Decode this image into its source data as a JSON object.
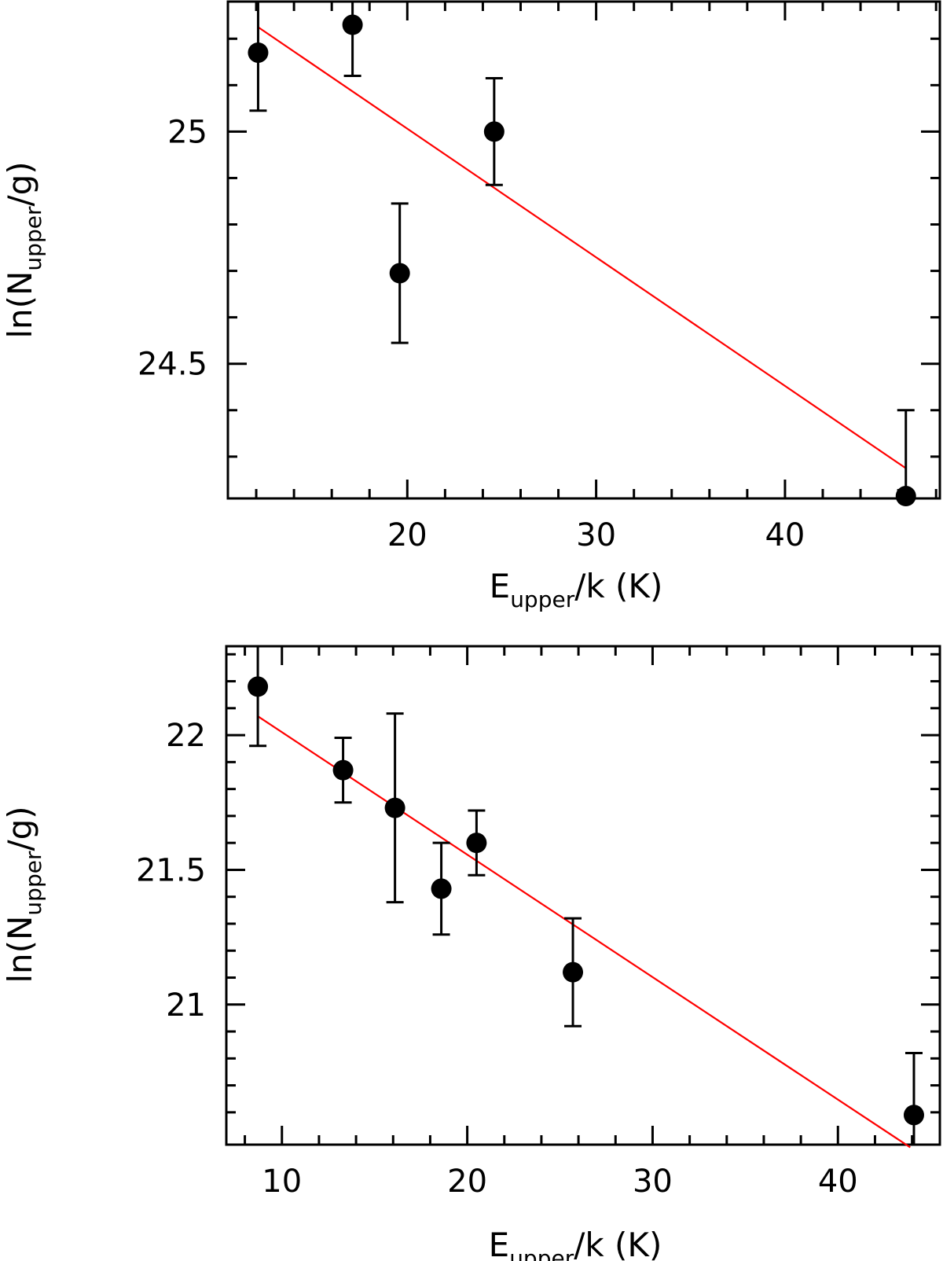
{
  "chart_data": [
    {
      "type": "scatter",
      "xlabel": {
        "main": "E",
        "sub": "upper",
        "rest": "/k (K)"
      },
      "ylabel": {
        "pre": "ln(N",
        "sub": "upper",
        "post": "/g)"
      },
      "xlim": [
        10.5,
        48.2
      ],
      "ylim": [
        24.21,
        25.28
      ],
      "xticks_major": [
        20,
        30,
        40
      ],
      "xticks_minor": [
        12,
        14,
        16,
        18,
        22,
        24,
        26,
        28,
        32,
        34,
        36,
        38,
        42,
        44,
        46,
        48
      ],
      "yticks_major": [
        24.5,
        25.0
      ],
      "yticks_minor": [
        24.3,
        24.4,
        24.6,
        24.7,
        24.8,
        24.9,
        25.1,
        25.2
      ],
      "xtick_labels": [
        "20",
        "30",
        "40"
      ],
      "ytick_labels": [
        "24.5",
        "25"
      ],
      "grid": false,
      "points": [
        {
          "x": 12.1,
          "y": 25.17,
          "err": 0.125
        },
        {
          "x": 17.1,
          "y": 25.23,
          "err": 0.11
        },
        {
          "x": 19.6,
          "y": 24.695,
          "err": 0.15
        },
        {
          "x": 24.6,
          "y": 25.0,
          "err": 0.115
        },
        {
          "x": 46.4,
          "y": 24.215,
          "err": 0.185
        }
      ],
      "fit": {
        "x": [
          12.1,
          46.4
        ],
        "y": [
          25.225,
          24.275
        ]
      },
      "colors": {
        "points": "#000000",
        "fit": "#ff0000"
      }
    },
    {
      "type": "scatter",
      "xlabel": {
        "main": "E",
        "sub": "upper",
        "rest": "/k (K)"
      },
      "ylabel": {
        "pre": "ln(N",
        "sub": "upper",
        "post": "/g)"
      },
      "xlim": [
        7.0,
        45.5
      ],
      "ylim": [
        20.48,
        22.33
      ],
      "xticks_major": [
        10,
        20,
        30,
        40
      ],
      "xticks_minor": [
        8,
        12,
        14,
        16,
        18,
        22,
        24,
        26,
        28,
        32,
        34,
        36,
        38,
        42,
        44
      ],
      "yticks_major": [
        21.0,
        21.5,
        22.0
      ],
      "yticks_minor": [
        20.6,
        20.7,
        20.8,
        20.9,
        21.1,
        21.2,
        21.3,
        21.4,
        21.6,
        21.7,
        21.8,
        21.9,
        22.1,
        22.2,
        22.3
      ],
      "xtick_labels": [
        "10",
        "20",
        "30",
        "40"
      ],
      "ytick_labels": [
        "21",
        "21.5",
        "22"
      ],
      "grid": false,
      "points": [
        {
          "x": 8.7,
          "y": 22.18,
          "err": 0.22
        },
        {
          "x": 13.3,
          "y": 21.87,
          "err": 0.12
        },
        {
          "x": 16.1,
          "y": 21.73,
          "err": 0.35
        },
        {
          "x": 18.6,
          "y": 21.43,
          "err": 0.17
        },
        {
          "x": 20.5,
          "y": 21.6,
          "err": 0.12
        },
        {
          "x": 25.7,
          "y": 21.12,
          "err": 0.2
        },
        {
          "x": 44.1,
          "y": 20.59,
          "err": 0.23
        }
      ],
      "fit": {
        "x": [
          8.7,
          43.9
        ],
        "y": [
          22.07,
          20.47
        ]
      },
      "colors": {
        "points": "#000000",
        "fit": "#ff0000"
      }
    }
  ]
}
